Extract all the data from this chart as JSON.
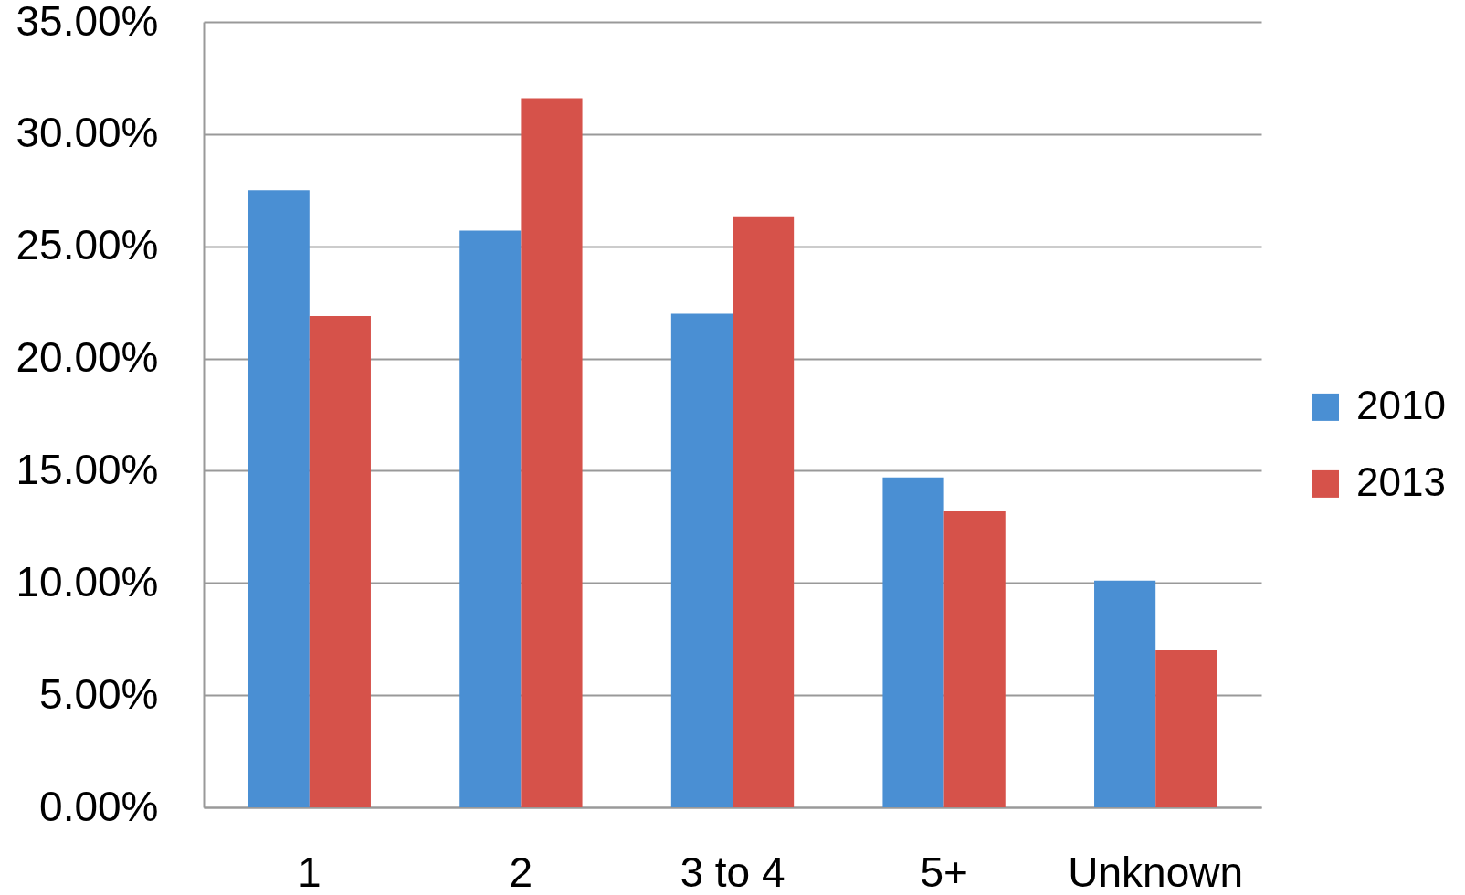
{
  "chart_data": {
    "type": "bar",
    "categories": [
      "1",
      "2",
      "3 to 4",
      "5+",
      "Unknown"
    ],
    "series": [
      {
        "name": "2010",
        "color": "#4a8fd3",
        "values": [
          27.5,
          25.7,
          22.0,
          14.7,
          10.1
        ]
      },
      {
        "name": "2013",
        "color": "#d6524a",
        "values": [
          21.9,
          31.6,
          26.3,
          13.2,
          7.0
        ]
      }
    ],
    "ylim": [
      0,
      35
    ],
    "yticks": [
      {
        "value": 0,
        "label": "0.00%"
      },
      {
        "value": 5,
        "label": "5.00%"
      },
      {
        "value": 10,
        "label": "10.00%"
      },
      {
        "value": 15,
        "label": "15.00%"
      },
      {
        "value": 20,
        "label": "20.00%"
      },
      {
        "value": 25,
        "label": "25.00%"
      },
      {
        "value": 30,
        "label": "30.00%"
      },
      {
        "value": 35,
        "label": "35.00%"
      }
    ],
    "grid": "y",
    "legend": "right"
  }
}
